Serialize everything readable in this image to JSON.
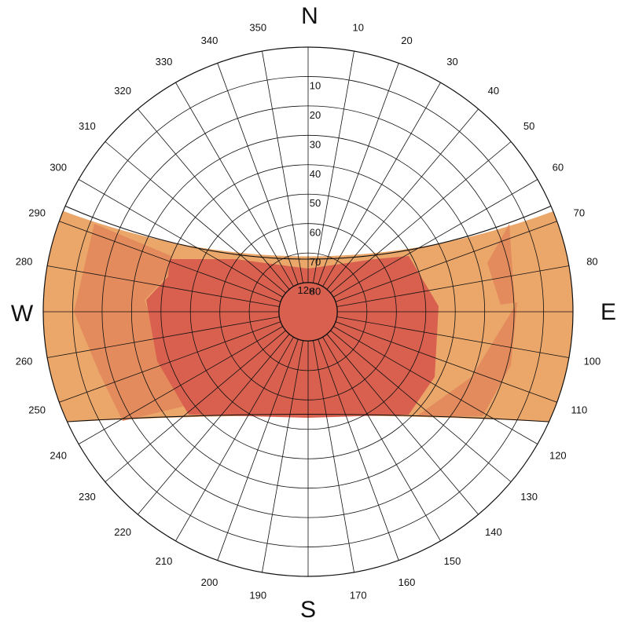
{
  "cardinals": {
    "north": "N",
    "east": "E",
    "south": "S",
    "west": "W"
  },
  "azimuth_labels": [
    {
      "deg": 10,
      "text": "10"
    },
    {
      "deg": 20,
      "text": "20"
    },
    {
      "deg": 30,
      "text": "30"
    },
    {
      "deg": 40,
      "text": "40"
    },
    {
      "deg": 50,
      "text": "50"
    },
    {
      "deg": 60,
      "text": "60"
    },
    {
      "deg": 70,
      "text": "70"
    },
    {
      "deg": 80,
      "text": "80"
    },
    {
      "deg": 100,
      "text": "100"
    },
    {
      "deg": 110,
      "text": "110"
    },
    {
      "deg": 120,
      "text": "120"
    },
    {
      "deg": 130,
      "text": "130"
    },
    {
      "deg": 140,
      "text": "140"
    },
    {
      "deg": 150,
      "text": "150"
    },
    {
      "deg": 160,
      "text": "160"
    },
    {
      "deg": 170,
      "text": "170"
    },
    {
      "deg": 190,
      "text": "190"
    },
    {
      "deg": 200,
      "text": "200"
    },
    {
      "deg": 210,
      "text": "210"
    },
    {
      "deg": 220,
      "text": "220"
    },
    {
      "deg": 230,
      "text": "230"
    },
    {
      "deg": 240,
      "text": "240"
    },
    {
      "deg": 250,
      "text": "250"
    },
    {
      "deg": 260,
      "text": "260"
    },
    {
      "deg": 280,
      "text": "280"
    },
    {
      "deg": 290,
      "text": "290"
    },
    {
      "deg": 300,
      "text": "300"
    },
    {
      "deg": 310,
      "text": "310"
    },
    {
      "deg": 320,
      "text": "320"
    },
    {
      "deg": 330,
      "text": "330"
    },
    {
      "deg": 340,
      "text": "340"
    },
    {
      "deg": 350,
      "text": "350"
    }
  ],
  "altitude_labels": [
    {
      "alt": 10,
      "text": "10"
    },
    {
      "alt": 20,
      "text": "20"
    },
    {
      "alt": 30,
      "text": "30"
    },
    {
      "alt": 40,
      "text": "40"
    },
    {
      "alt": 50,
      "text": "50"
    },
    {
      "alt": 60,
      "text": "60"
    },
    {
      "alt": 70,
      "text": "70"
    },
    {
      "alt": 80,
      "text": "80"
    }
  ],
  "noon_label": {
    "main": "12",
    "sub": "H"
  },
  "colors": {
    "outer_band": "#eba66a",
    "mid_band": "#e38b5c",
    "inner_band": "#d9604f",
    "grid": "#111111",
    "background": "#ffffff"
  }
}
